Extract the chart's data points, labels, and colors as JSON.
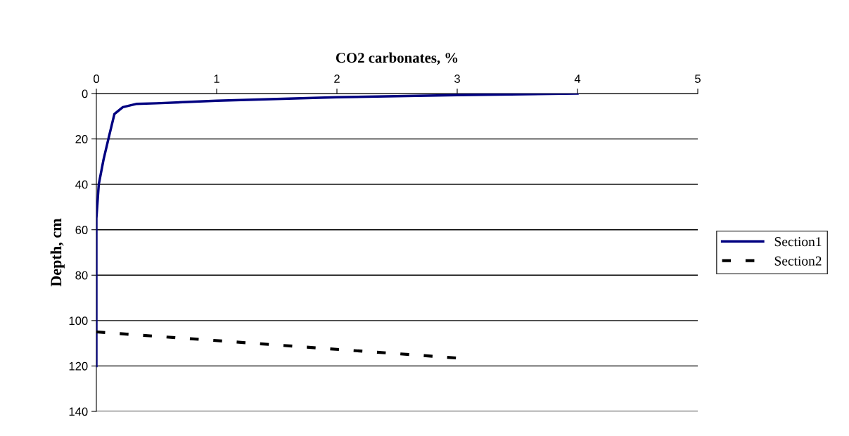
{
  "chart_data": {
    "type": "line",
    "xlabel": "CO2 carbonates, %",
    "ylabel": "Depth, cm",
    "xlim": [
      0,
      5
    ],
    "xticks": [
      0,
      1,
      2,
      3,
      4,
      5
    ],
    "ylim": [
      140,
      0
    ],
    "yticks": [
      0,
      20,
      40,
      60,
      80,
      100,
      120,
      140
    ],
    "grid": "y",
    "legend": "right",
    "marker": "none",
    "series": [
      {
        "name": "Section1",
        "color": "#000080",
        "line_style": "solid",
        "x": [
          4,
          3,
          2,
          1,
          0.5,
          0.33,
          0.22,
          0.15,
          0.1,
          0.06,
          0.02,
          0,
          0
        ],
        "values": [
          0,
          0.7,
          1.6,
          3.2,
          4.3,
          4.6,
          6,
          9,
          20,
          29,
          40,
          55,
          120
        ]
      },
      {
        "name": "Section2",
        "color": "#000000",
        "line_style": "dashed",
        "x": [
          0,
          3
        ],
        "values": [
          105,
          116.5
        ]
      }
    ]
  }
}
